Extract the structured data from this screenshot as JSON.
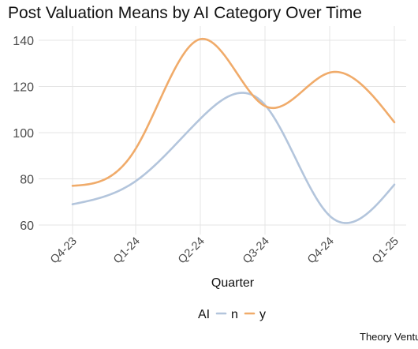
{
  "chart_data": {
    "type": "line",
    "title": "Post Valuation Means by AI Category Over Time",
    "xlabel": "Quarter",
    "ylabel": "",
    "categories": [
      "Q4-23",
      "Q1-24",
      "Q2-24",
      "Q3-24",
      "Q4-24",
      "Q1-25"
    ],
    "y_ticks": [
      60,
      80,
      100,
      120,
      140
    ],
    "ylim": [
      57,
      145
    ],
    "grid": true,
    "smooth": true,
    "legend": {
      "title": "AI",
      "position": "bottom"
    },
    "series": [
      {
        "name": "n",
        "color": "#b3c5dc",
        "values": [
          69,
          79,
          106,
          112,
          64,
          77.5
        ]
      },
      {
        "name": "y",
        "color": "#f0ab6a",
        "values": [
          77,
          93,
          140.5,
          111.5,
          126,
          104.5
        ]
      }
    ],
    "caption": "Theory Ventu"
  }
}
